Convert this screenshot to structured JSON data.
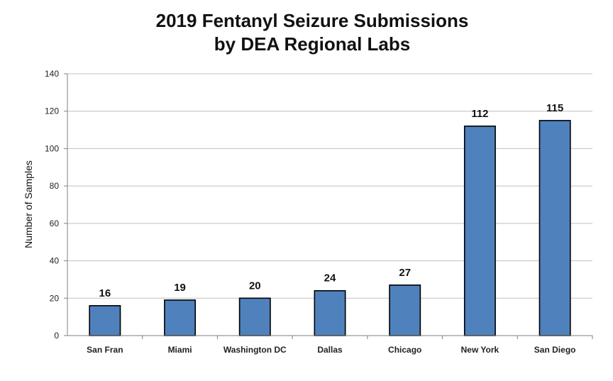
{
  "chart_data": {
    "type": "bar",
    "title": "2019 Fentanyl Seizure Submissions",
    "subtitle": "by DEA Regional Labs",
    "xlabel": "",
    "ylabel": "Number of Samples",
    "categories": [
      "San Fran",
      "Miami",
      "Washington DC",
      "Dallas",
      "Chicago",
      "New York",
      "San Diego"
    ],
    "values": [
      16,
      19,
      20,
      24,
      27,
      112,
      115
    ],
    "ylim": [
      0,
      140
    ],
    "yticks": [
      0,
      20,
      40,
      60,
      80,
      100,
      120,
      140
    ],
    "grid": true,
    "legend": "none",
    "colors": {
      "bar_fill": "#4F81BD",
      "bar_stroke": "#000000",
      "grid": "#bfbfbf",
      "axis": "#808080"
    }
  }
}
